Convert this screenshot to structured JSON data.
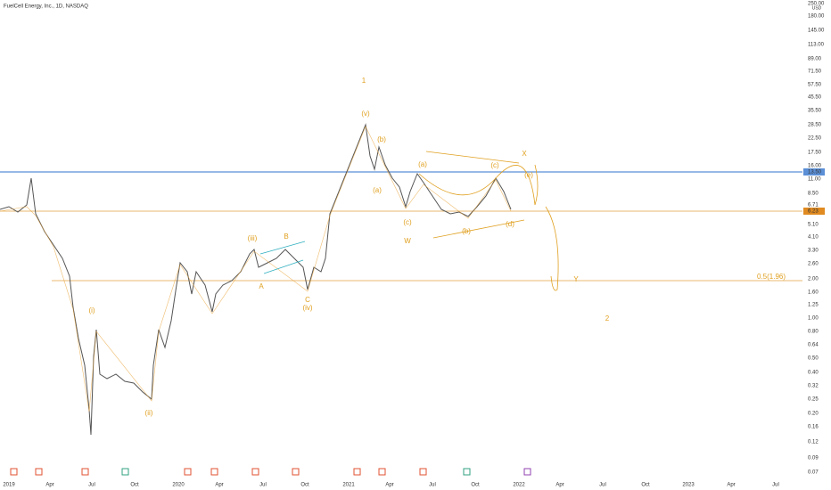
{
  "header": {
    "title": "FuelCell Energy, Inc., 1D, NASDAQ",
    "currency": "USD"
  },
  "price_axis": [
    "250.00",
    "180.00",
    "145.00",
    "113.00",
    "89.00",
    "71.50",
    "57.50",
    "45.50",
    "35.50",
    "28.50",
    "22.50",
    "17.50",
    "16.00",
    "13.50",
    "11.00",
    "8.50",
    "6.71",
    "6.23",
    "5.10",
    "4.10",
    "3.30",
    "2.60",
    "2.00",
    "1.60",
    "1.25",
    "1.00",
    "0.80",
    "0.64",
    "0.50",
    "0.40",
    "0.32",
    "0.25",
    "0.20",
    "0.16",
    "0.12",
    "0.09",
    "0.07"
  ],
  "time_axis": [
    "2019",
    "Apr",
    "Jul",
    "Oct",
    "2020",
    "Apr",
    "Jul",
    "Oct",
    "2021",
    "Apr",
    "Jul",
    "Oct",
    "2022",
    "Apr",
    "Jul",
    "Oct",
    "2023",
    "Apr",
    "Jul"
  ],
  "annotations": [
    "1",
    "(v)",
    "(b)",
    "(a)",
    "(c)",
    "X",
    "(e)",
    "(iii)",
    "B",
    "A",
    "C",
    "(iv)",
    "(i)",
    "(ii)",
    "W",
    "(b)",
    "(d)",
    "Y",
    "2",
    "(c)",
    "(a)",
    "0.5(1.96)"
  ]
}
